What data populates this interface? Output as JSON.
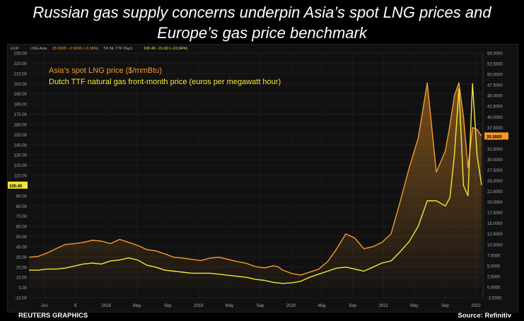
{
  "title_line1": "Russian gas supply concerns underpin Asia’s spot LNG prices and",
  "title_line2": "Europe’s gas price benchmark",
  "footer": {
    "source_left": "REUTERS GRAPHICS",
    "source_right": "Source: Refinitiv"
  },
  "colors": {
    "lng": "#f59a2c",
    "ttf": "#f2e63a",
    "background": "#111111"
  },
  "chart_data": {
    "type": "line",
    "header": {
      "unit": "EUR",
      "lng_label": "LNG Asia",
      "lng_value": "35.5000 −2.5000 (−6.58%)",
      "ttf_label": "TR NL TTF Day1",
      "ttf_value": "100.40 −31.60 (−23.94%)"
    },
    "legend": [
      "Asia’s spot LNG price ($/mmBtu)",
      "Dutch TTF natural gas front-month price (euros per megawatt hour)"
    ],
    "x_ticks": [
      "Jun",
      "8",
      "2018",
      "May",
      "Sep",
      "2019",
      "May",
      "Sep",
      "2020",
      "May",
      "Sep",
      "2021",
      "May",
      "Sep",
      "2022"
    ],
    "left_axis": {
      "ticks": [
        "230.00",
        "220.00",
        "210.00",
        "200.00",
        "190.00",
        "180.00",
        "170.00",
        "160.00",
        "150.00",
        "140.00",
        "130.00",
        "120.00",
        "110.00",
        "100.00",
        "90.00",
        "80.00",
        "70.00",
        "60.00",
        "50.00",
        "40.00",
        "30.00",
        "20.00",
        "10.00",
        "0.00",
        "-10.00"
      ],
      "ylim": [
        -10,
        230
      ],
      "last_value": "100.40"
    },
    "right_axis": {
      "ticks": [
        "55.0000",
        "52.5000",
        "50.0000",
        "47.5000",
        "45.0000",
        "42.5000",
        "40.0000",
        "37.5000",
        "35.0000",
        "32.5000",
        "30.0000",
        "27.5000",
        "25.0000",
        "22.5000",
        "20.0000",
        "17.5000",
        "15.0000",
        "12.5000",
        "10.0000",
        "7.5000",
        "5.0000",
        "2.5000",
        "0.0000",
        "-2.5000"
      ],
      "ylim": [
        -2.5,
        55
      ],
      "last_value": "35.5000"
    },
    "series": [
      {
        "name": "Asia’s spot LNG price ($/mmBtu)",
        "axis": "right",
        "color": "#f59a2c",
        "x": [
          0,
          2,
          4,
          6,
          8,
          10,
          12,
          14,
          16,
          18,
          20,
          22,
          24,
          26,
          28,
          30,
          32,
          34,
          36,
          38,
          40,
          42,
          44,
          46,
          48,
          50,
          52,
          54,
          55,
          56,
          58,
          60,
          62,
          64,
          66,
          68,
          70,
          72,
          74,
          76,
          78,
          80,
          82,
          84,
          86,
          88,
          90,
          92,
          93,
          94,
          95,
          96,
          97,
          98,
          99,
          100
        ],
        "values": [
          7.0,
          7.2,
          8.0,
          9.0,
          10.0,
          10.2,
          10.5,
          11.0,
          10.8,
          10.2,
          11.2,
          10.5,
          9.8,
          8.8,
          8.5,
          7.8,
          7.0,
          6.8,
          6.5,
          6.2,
          6.8,
          7.0,
          6.5,
          6.0,
          5.6,
          4.8,
          4.5,
          5.0,
          4.8,
          4.0,
          3.2,
          2.8,
          3.5,
          4.2,
          6.0,
          9.0,
          12.5,
          11.5,
          9.0,
          9.5,
          10.5,
          12.5,
          20.0,
          28.0,
          35.0,
          48.0,
          27.0,
          32.0,
          38.0,
          45.0,
          48.0,
          40.0,
          28.0,
          37.5,
          37.0,
          35.5
        ]
      },
      {
        "name": "Dutch TTF natural gas front-month price (euros per megawatt hour)",
        "axis": "left",
        "color": "#f2e63a",
        "x": [
          0,
          2,
          4,
          6,
          8,
          10,
          12,
          14,
          16,
          18,
          20,
          22,
          24,
          26,
          28,
          30,
          32,
          34,
          36,
          38,
          40,
          42,
          44,
          46,
          48,
          50,
          52,
          54,
          55,
          56,
          58,
          60,
          62,
          64,
          66,
          68,
          70,
          72,
          74,
          76,
          78,
          80,
          82,
          84,
          86,
          88,
          90,
          92,
          93,
          94,
          95,
          96,
          97,
          98,
          99,
          100
        ],
        "values": [
          17,
          17,
          18,
          18,
          19,
          21,
          23,
          24,
          23,
          26,
          27,
          29,
          27,
          22,
          20,
          17,
          16,
          15,
          14,
          14,
          14,
          13,
          12,
          11,
          10,
          8,
          7,
          5,
          4.5,
          4,
          4.5,
          6,
          10,
          13,
          16,
          19,
          20,
          18,
          16,
          20,
          24,
          26,
          35,
          45,
          60,
          85,
          85,
          80,
          88,
          130,
          195,
          100,
          90,
          200,
          130,
          100.4
        ]
      }
    ]
  }
}
